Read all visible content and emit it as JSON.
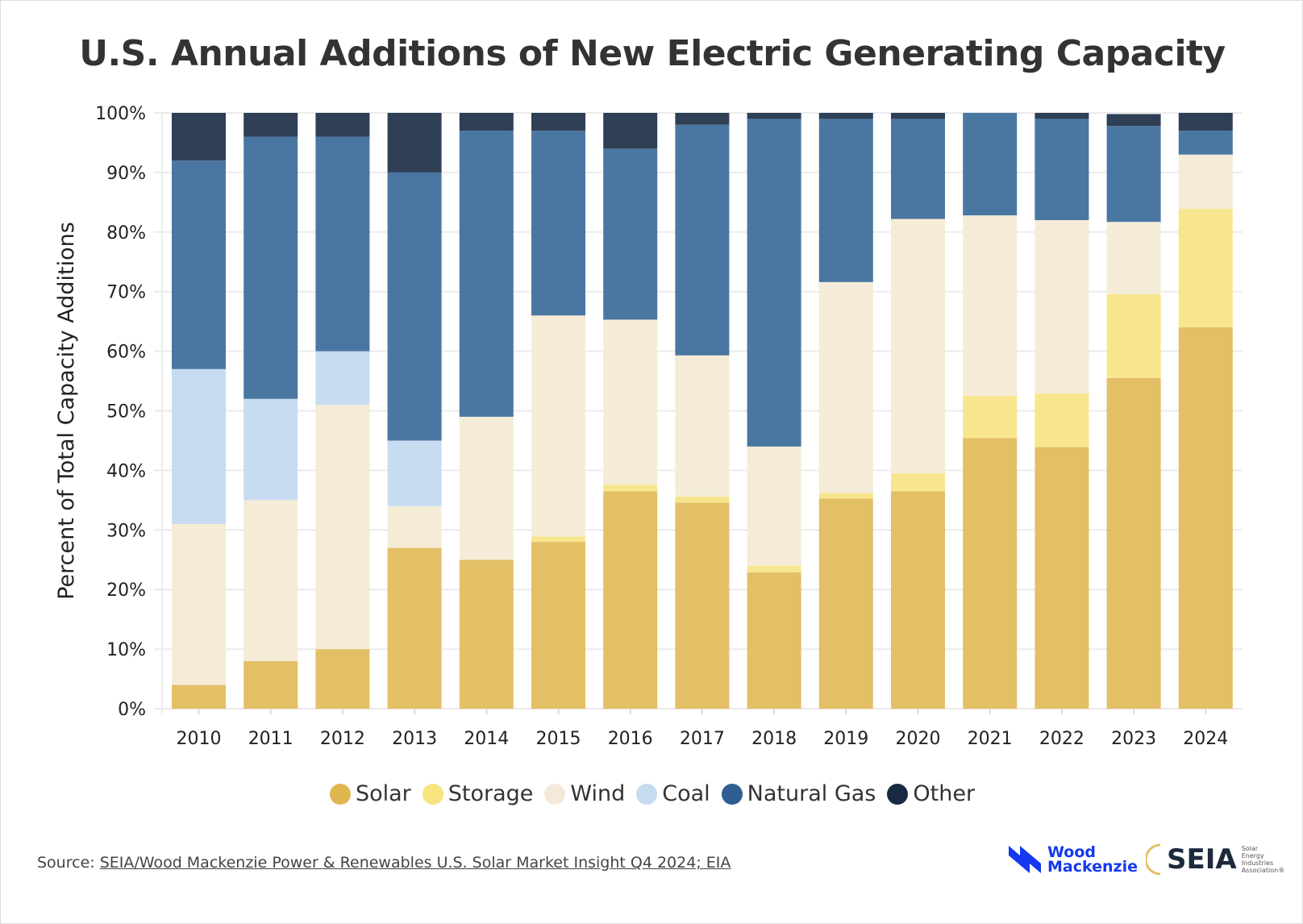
{
  "chart_data": {
    "type": "bar",
    "stacked": true,
    "title": "U.S. Annual Additions of New Electric Generating Capacity",
    "xlabel": "",
    "ylabel": "Percent of Total Capacity Additions",
    "ylim": [
      0,
      100
    ],
    "yticks": [
      "0%",
      "10%",
      "20%",
      "30%",
      "40%",
      "50%",
      "60%",
      "70%",
      "80%",
      "90%",
      "100%"
    ],
    "grid": true,
    "legend_position": "bottom",
    "categories": [
      "2010",
      "2011",
      "2012",
      "2013",
      "2014",
      "2015",
      "2016",
      "2017",
      "2018",
      "2019",
      "2020",
      "2021",
      "2022",
      "2023",
      "2024"
    ],
    "series": [
      {
        "name": "Solar",
        "color": "#e3bf66",
        "legend_color": "#e0b650",
        "values": [
          4,
          8,
          10,
          27,
          25,
          28,
          36.5,
          34.6,
          22.9,
          35.3,
          36.5,
          45.4,
          43.9,
          55.5,
          64
        ]
      },
      {
        "name": "Storage",
        "color": "#f7e68e",
        "legend_color": "#f7e47f",
        "values": [
          0,
          0,
          0,
          0,
          0,
          0.9,
          1.1,
          1,
          1.1,
          0.9,
          3,
          7.1,
          9,
          14.1,
          19.9
        ]
      },
      {
        "name": "Wind",
        "color": "#f5ecd8",
        "legend_color": "#f5eada",
        "values": [
          27,
          27,
          41,
          7,
          24,
          37.1,
          27.7,
          23.7,
          20,
          35.4,
          42.7,
          30.3,
          29.1,
          12.1,
          9.1
        ]
      },
      {
        "name": "Coal",
        "color": "#c7dcf0",
        "legend_color": "#c5dcf0",
        "values": [
          26,
          17,
          9,
          11,
          0,
          0,
          0,
          0,
          0,
          0,
          0,
          0,
          0,
          0,
          0
        ]
      },
      {
        "name": "Natural Gas",
        "color": "#4a77a2",
        "legend_color": "#2f5f91",
        "values": [
          35,
          44,
          36,
          45,
          48,
          31,
          28.7,
          38.7,
          55,
          27.4,
          16.8,
          17.2,
          17,
          16.1,
          4
        ]
      },
      {
        "name": "Other",
        "color": "#2e3f56",
        "legend_color": "#1b2a44",
        "values": [
          8,
          4,
          4,
          10,
          3,
          3,
          6,
          2,
          1,
          1,
          1,
          0,
          1,
          2,
          3
        ]
      }
    ]
  },
  "source": {
    "prefix": "Source: ",
    "link": "SEIA/Wood Mackenzie Power & Renewables U.S. Solar Market Insight Q4 2024; EIA"
  },
  "logos": {
    "wood_mackenzie": "Wood Mackenzie",
    "seia": "SEIA",
    "seia_sub": "Solar Energy Industries Association®"
  }
}
